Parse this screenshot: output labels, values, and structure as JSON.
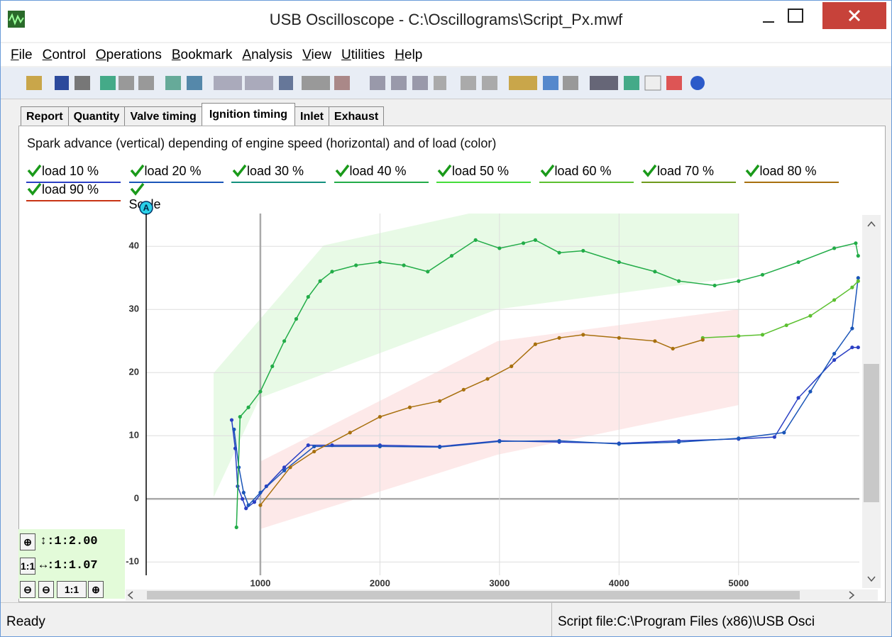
{
  "window": {
    "title": "USB Oscilloscope - C:\\Oscillograms\\Script_Px.mwf"
  },
  "menu": [
    "File",
    "Control",
    "Operations",
    "Bookmark",
    "Analysis",
    "View",
    "Utilities",
    "Help"
  ],
  "tabs": [
    "Report",
    "Quantity",
    "Valve timing",
    "Ignition timing",
    "Inlet",
    "Exhaust"
  ],
  "active_tab": "Ignition timing",
  "description": "Spark advance (vertical) depending of engine speed (horizontal) and of load (color)",
  "scale_label": "Scale",
  "zoom": {
    "vertical": "↕:1:2.00",
    "horizontal": "↔:1:1.07",
    "reset": "1:1"
  },
  "status": {
    "left": "Ready",
    "right": "Script file:C:\\Program Files (x86)\\USB Osci"
  },
  "chart": {
    "type": "scatter-line",
    "xlim": [
      45,
      6010
    ],
    "ylim": [
      -12.1,
      45.2
    ],
    "xticks": [
      1000,
      2000,
      3000,
      4000,
      5000
    ],
    "yticks": [
      -10,
      0,
      10,
      20,
      30,
      40
    ],
    "series": [
      {
        "name": "load 10 %",
        "color": "#2a3fc4",
        "x": [
          760,
          790,
          810,
          850,
          880,
          950,
          1050,
          1200,
          1400,
          1600,
          2000,
          2500,
          3000,
          3500,
          4000,
          4500,
          5000,
          5300,
          5500,
          5800,
          5950,
          6000
        ],
        "values": [
          12.5,
          8,
          2,
          0,
          -1.5,
          -0.5,
          2,
          5,
          8.5,
          8.5,
          8.5,
          8.3,
          9.2,
          9,
          8.8,
          9.2,
          9.5,
          9.8,
          16,
          22,
          24,
          24
        ]
      },
      {
        "name": "load 20 %",
        "color": "#1a55b8",
        "x": [
          780,
          820,
          860,
          900,
          1000,
          1200,
          1450,
          2000,
          2500,
          3000,
          3500,
          4000,
          4500,
          5000,
          5380,
          5600,
          5800,
          5950,
          6000
        ],
        "values": [
          11,
          5,
          1,
          -1,
          1,
          4.5,
          8.3,
          8.3,
          8.2,
          9.1,
          9.2,
          8.7,
          9,
          9.6,
          10.5,
          17,
          23,
          27,
          35
        ]
      },
      {
        "name": "load 30 %",
        "color": "#13907e"
      },
      {
        "name": "load 40 %",
        "color": "#22ac48",
        "x": [
          800,
          830,
          900,
          1000,
          1100,
          1200,
          1300,
          1400,
          1500,
          1600,
          1800,
          2000,
          2200,
          2400,
          2600,
          2800,
          3000,
          3200,
          3300,
          3500,
          3700,
          4000,
          4300,
          4500,
          4800,
          5000,
          5200,
          5500,
          5800,
          5980,
          6000
        ],
        "values": [
          -4.5,
          13,
          14.5,
          17,
          21,
          25,
          28.5,
          32,
          34.5,
          36,
          37,
          37.5,
          37,
          36,
          38.5,
          41,
          39.7,
          40.5,
          41,
          39,
          39.3,
          37.5,
          36,
          34.5,
          33.8,
          34.5,
          35.5,
          37.5,
          39.7,
          40.5,
          38.5
        ]
      },
      {
        "name": "load 50 %",
        "color": "#44dd3a"
      },
      {
        "name": "load 60 %",
        "color": "#5cc030",
        "x": [
          4700,
          5000,
          5200,
          5400,
          5600,
          5800,
          5950,
          6000
        ],
        "values": [
          25.5,
          25.8,
          26,
          27.5,
          29,
          31.5,
          33.5,
          34.5
        ]
      },
      {
        "name": "load 70 %",
        "color": "#6f9a1c"
      },
      {
        "name": "load 80 %",
        "color": "#a8700e",
        "x": [
          1000,
          1250,
          1450,
          1750,
          2000,
          2250,
          2500,
          2700,
          2900,
          3100,
          3300,
          3500,
          3700,
          4000,
          4300,
          4450,
          4700
        ],
        "values": [
          -1,
          5,
          7.5,
          10.5,
          13,
          14.5,
          15.5,
          17.3,
          19,
          21,
          24.5,
          25.5,
          26,
          25.5,
          25,
          23.8,
          25.2
        ]
      },
      {
        "name": "load 90 %",
        "color": "#c83414"
      }
    ]
  }
}
